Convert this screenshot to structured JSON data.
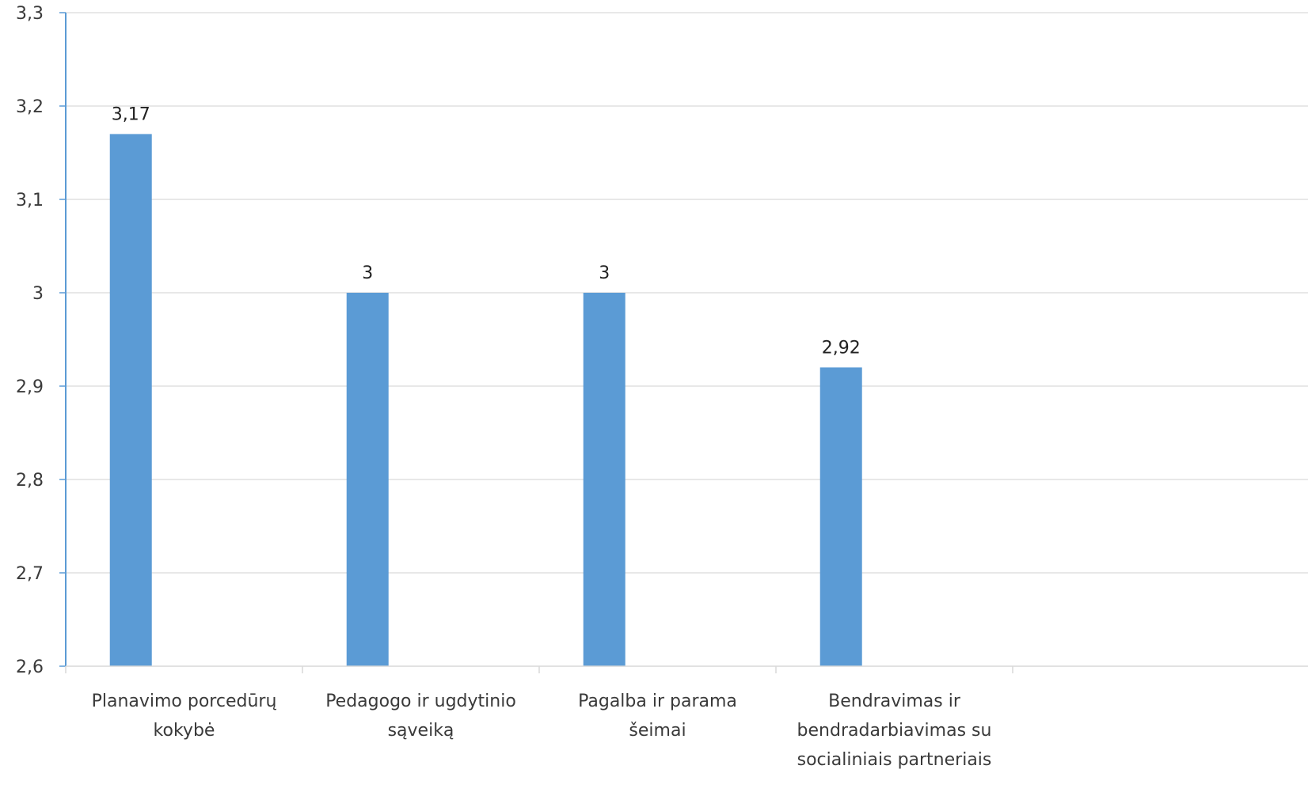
{
  "chart_data": {
    "type": "bar",
    "categories": [
      [
        "Planavimo porcedūrų",
        "kokybė"
      ],
      [
        "Pedagogo ir ugdytinio",
        "sąveiką"
      ],
      [
        "Pagalba ir parama",
        "šeimai"
      ],
      [
        "Bendravimas ir",
        "bendradarbiavimas su",
        "socialiniais partneriais"
      ]
    ],
    "values": [
      3.17,
      3.0,
      3.0,
      2.92
    ],
    "data_labels": [
      "3,17",
      "3",
      "3",
      "2,92"
    ],
    "y_ticks": [
      2.6,
      2.7,
      2.8,
      2.9,
      3.0,
      3.1,
      3.2,
      3.3
    ],
    "y_tick_labels": [
      "2,6",
      "2,7",
      "2,8",
      "2,9",
      "3",
      "3,1",
      "3,2",
      "3,3"
    ],
    "ylim": [
      2.6,
      3.3
    ],
    "category_slots": 5,
    "grid": true,
    "colors": {
      "bar": "#5b9bd5",
      "gridline": "#d9d9d9",
      "axis": "#5b9bd5",
      "tick_text": "#3a3a3a"
    }
  }
}
